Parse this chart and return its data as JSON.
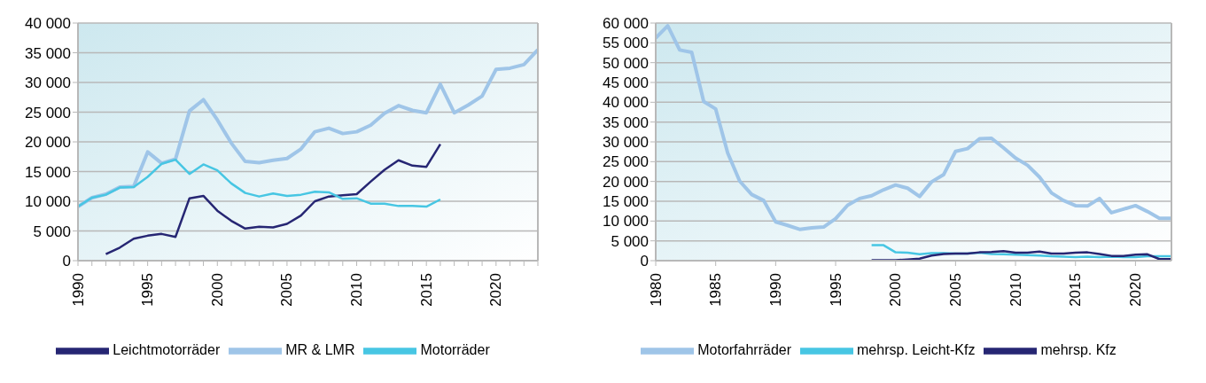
{
  "chart_data": [
    {
      "type": "line",
      "x": [
        1990,
        1991,
        1992,
        1993,
        1994,
        1995,
        1996,
        1997,
        1998,
        1999,
        2000,
        2001,
        2002,
        2003,
        2004,
        2005,
        2006,
        2007,
        2008,
        2009,
        2010,
        2011,
        2012,
        2013,
        2014,
        2015,
        2016,
        2017,
        2018,
        2019,
        2020,
        2021,
        2022,
        2023
      ],
      "series": [
        {
          "name": "Leichtmotorräder",
          "color": "#262673",
          "values": [
            null,
            null,
            1100,
            2200,
            3700,
            4200,
            4500,
            4000,
            10500,
            10900,
            8400,
            6700,
            5400,
            5700,
            5600,
            6200,
            7600,
            10000,
            10800,
            11000,
            11200,
            13300,
            15300,
            16900,
            16000,
            15800,
            19600,
            null,
            null,
            null,
            null,
            null,
            null,
            null
          ]
        },
        {
          "name": "MR & LMR",
          "color": "#9fc5e8",
          "values": [
            9100,
            10600,
            11200,
            12400,
            12500,
            18300,
            16400,
            17100,
            25200,
            27100,
            23700,
            19800,
            16700,
            16500,
            16900,
            17200,
            18800,
            21700,
            22300,
            21400,
            21700,
            22800,
            24800,
            26100,
            25300,
            24900,
            29700,
            24900,
            26200,
            27700,
            32200,
            32400,
            33000,
            35500
          ]
        },
        {
          "name": "Motorräder",
          "color": "#47c6e3",
          "values": [
            9100,
            10600,
            11100,
            12300,
            12400,
            14100,
            16300,
            17000,
            14600,
            16200,
            15200,
            13000,
            11400,
            10800,
            11300,
            10900,
            11100,
            11600,
            11500,
            10400,
            10500,
            9600,
            9600,
            9200,
            9200,
            9100,
            10300,
            null,
            null,
            null,
            null,
            null,
            null,
            null
          ]
        }
      ],
      "xlim": [
        1990,
        2023
      ],
      "xticks": [
        1990,
        {
          "value": 1991,
          "label": null
        },
        {
          "value": 1992,
          "label": null
        },
        {
          "value": 1993,
          "label": null
        },
        {
          "value": 1994,
          "label": null
        },
        1995,
        {
          "value": 1996,
          "label": null
        },
        {
          "value": 1997,
          "label": null
        },
        {
          "value": 1998,
          "label": null
        },
        {
          "value": 1999,
          "label": null
        },
        2000,
        {
          "value": 2001,
          "label": null
        },
        {
          "value": 2002,
          "label": null
        },
        {
          "value": 2003,
          "label": null
        },
        {
          "value": 2004,
          "label": null
        },
        2005,
        {
          "value": 2006,
          "label": null
        },
        {
          "value": 2007,
          "label": null
        },
        {
          "value": 2008,
          "label": null
        },
        {
          "value": 2009,
          "label": null
        },
        2010,
        {
          "value": 2011,
          "label": null
        },
        {
          "value": 2012,
          "label": null
        },
        {
          "value": 2013,
          "label": null
        },
        {
          "value": 2014,
          "label": null
        },
        2015,
        {
          "value": 2016,
          "label": null
        },
        {
          "value": 2017,
          "label": null
        },
        {
          "value": 2018,
          "label": null
        },
        {
          "value": 2019,
          "label": null
        },
        2020,
        {
          "value": 2021,
          "label": null
        },
        {
          "value": 2022,
          "label": null
        },
        {
          "value": 2023,
          "label": null
        }
      ],
      "ylim": [
        0,
        40000
      ],
      "yticks": [
        0,
        {
          "value": 5000,
          "label": "5 000"
        },
        {
          "value": 10000,
          "label": "10 000"
        },
        {
          "value": 15000,
          "label": "15 000"
        },
        {
          "value": 20000,
          "label": "20 000"
        },
        {
          "value": 25000,
          "label": "25 000"
        },
        {
          "value": 30000,
          "label": "30 000"
        },
        {
          "value": 35000,
          "label": "35 000"
        },
        {
          "value": 40000,
          "label": "40 000"
        }
      ],
      "grid": "y",
      "legend": "bottom",
      "marker": "none",
      "line_style": "solid"
    },
    {
      "type": "line",
      "x": [
        1980,
        1981,
        1982,
        1983,
        1984,
        1985,
        1986,
        1987,
        1988,
        1989,
        1990,
        1991,
        1992,
        1993,
        1994,
        1995,
        1996,
        1997,
        1998,
        1999,
        2000,
        2001,
        2002,
        2003,
        2004,
        2005,
        2006,
        2007,
        2008,
        2009,
        2010,
        2011,
        2012,
        2013,
        2014,
        2015,
        2016,
        2017,
        2018,
        2019,
        2020,
        2021,
        2022,
        2023
      ],
      "series": [
        {
          "name": "Motorfahrräder",
          "color": "#9fc5e8",
          "values": [
            56200,
            59300,
            53200,
            52600,
            40200,
            38300,
            27200,
            20100,
            16700,
            15200,
            9800,
            8900,
            7900,
            8300,
            8500,
            10600,
            14000,
            15700,
            16400,
            17900,
            19100,
            18300,
            16200,
            19900,
            21700,
            27600,
            28300,
            30800,
            30900,
            28500,
            25900,
            24100,
            21100,
            17100,
            15200,
            13900,
            13800,
            15700,
            12100,
            13000,
            13900,
            12400,
            10700,
            10700
          ]
        },
        {
          "name": "mehrsp. Leicht-Kfz",
          "color": "#47c6e3",
          "values": [
            null,
            null,
            null,
            null,
            null,
            null,
            null,
            null,
            null,
            null,
            null,
            null,
            null,
            null,
            null,
            null,
            null,
            null,
            3900,
            3900,
            2100,
            2000,
            1600,
            1900,
            1900,
            1800,
            1800,
            2000,
            1700,
            1600,
            1500,
            1400,
            1300,
            1100,
            1000,
            900,
            1000,
            900,
            1000,
            900,
            900,
            1100,
            1100,
            1100
          ]
        },
        {
          "name": "mehrsp. Kfz",
          "color": "#262673",
          "values": [
            null,
            null,
            null,
            null,
            null,
            null,
            null,
            null,
            null,
            null,
            null,
            null,
            null,
            null,
            null,
            null,
            null,
            null,
            100,
            100,
            100,
            300,
            500,
            1300,
            1700,
            1800,
            1800,
            2100,
            2200,
            2400,
            2000,
            2000,
            2300,
            1800,
            1800,
            2000,
            2100,
            1700,
            1200,
            1200,
            1500,
            1600,
            400,
            400
          ]
        }
      ],
      "xlim": [
        1980,
        2023
      ],
      "xticks": [
        1980,
        1985,
        1990,
        1995,
        2000,
        2005,
        2010,
        2015,
        2020
      ],
      "ylim": [
        0,
        60000
      ],
      "yticks": [
        0,
        {
          "value": 5000,
          "label": "5 000"
        },
        {
          "value": 10000,
          "label": "10 000"
        },
        {
          "value": 15000,
          "label": "15 000"
        },
        {
          "value": 20000,
          "label": "20 000"
        },
        {
          "value": 25000,
          "label": "25 000"
        },
        {
          "value": 30000,
          "label": "30 000"
        },
        {
          "value": 35000,
          "label": "35 000"
        },
        {
          "value": 40000,
          "label": "40 000"
        },
        {
          "value": 45000,
          "label": "45 000"
        },
        {
          "value": 50000,
          "label": "50 000"
        },
        {
          "value": 55000,
          "label": "55 000"
        },
        {
          "value": 60000,
          "label": "60 000"
        }
      ],
      "grid": "y",
      "legend": "bottom",
      "marker": "none",
      "line_style": "solid"
    }
  ]
}
